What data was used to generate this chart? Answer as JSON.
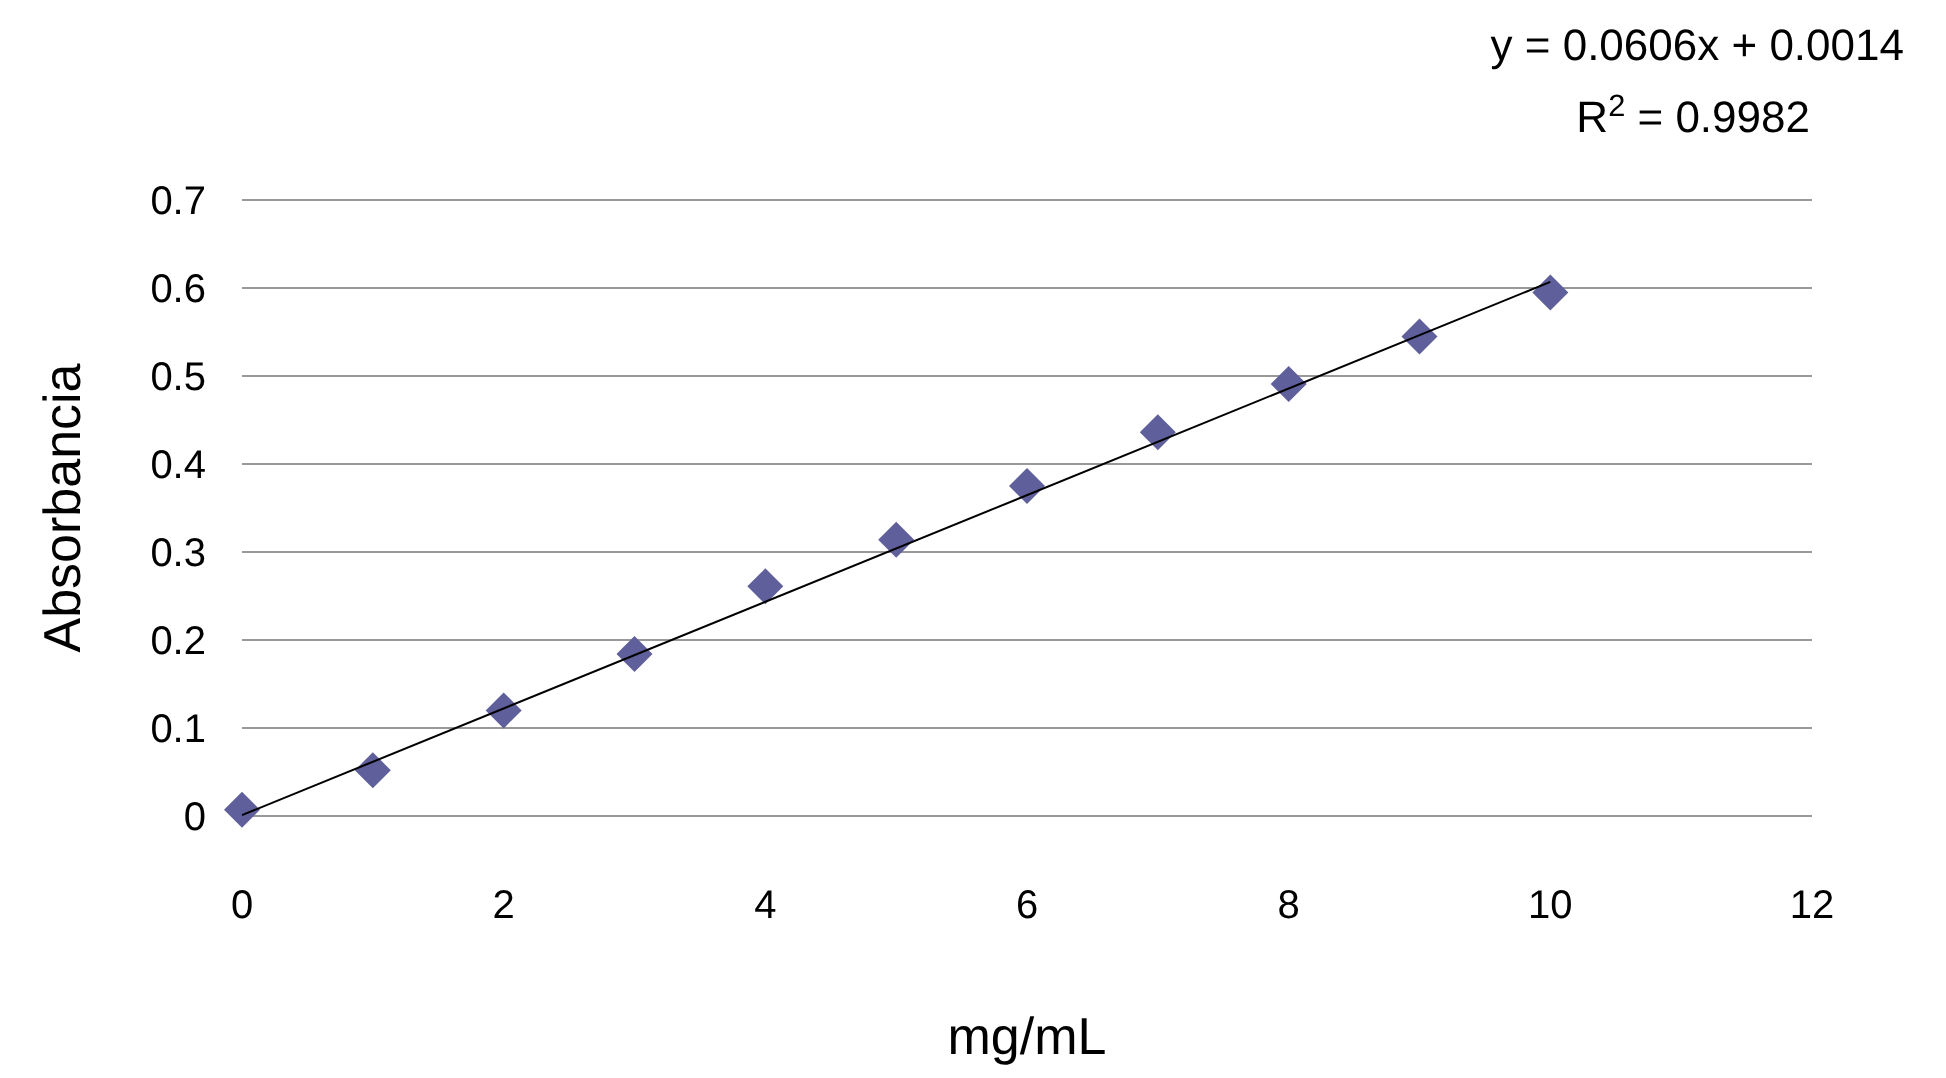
{
  "chart_data": {
    "type": "scatter",
    "xlabel": "mg/mL",
    "ylabel": "Absorbancia",
    "x": [
      0,
      1,
      2,
      3,
      4,
      5,
      6,
      7,
      8,
      9,
      10
    ],
    "series": [
      {
        "color": "#5f5f9c",
        "marker": "diamond",
        "values": [
          0.007,
          0.052,
          0.12,
          0.184,
          0.261,
          0.314,
          0.375,
          0.436,
          0.491,
          0.545,
          0.595
        ]
      },
      {
        "type": "line",
        "color": "#000000",
        "x": [
          0,
          10
        ],
        "values": [
          0.001,
          0.607
        ],
        "marker": "none",
        "line_style": "solid"
      }
    ],
    "xlim": [
      0,
      12
    ],
    "xticks": [
      0,
      2,
      4,
      6,
      8,
      10,
      12
    ],
    "ylim": [
      0,
      0.7
    ],
    "yticks": [
      0,
      0.1,
      0.2,
      0.3,
      0.4,
      0.5,
      0.6,
      0.7
    ],
    "grid": "y",
    "annotations": [
      "y = 0.0606x + 0.0014",
      "R$^{2}$ = 0.9982"
    ]
  }
}
